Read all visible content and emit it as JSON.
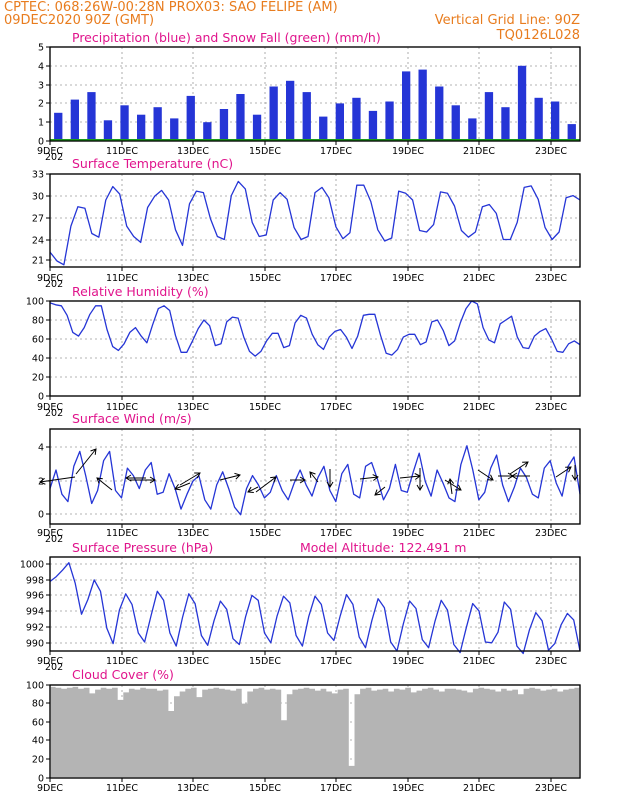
{
  "header": {
    "line1_left": "CPTEC:   068:26W-00:28N  PROX03: SAO FELIPE (AM)",
    "line2_left": "09DEC2020 90Z (GMT)",
    "line2_right": "Vertical Grid Line: 90Z",
    "line3_right": "TQ0126L028"
  },
  "colors": {
    "header": "#e87c1e",
    "title": "#e0148c",
    "line": "#2535d6",
    "snow": "#1a9a1a",
    "cloud": "#b4b4b4",
    "grid": "#9a9a9a"
  },
  "x_ticks": [
    "9DEC",
    "11DEC",
    "13DEC",
    "15DEC",
    "17DEC",
    "19DEC",
    "21DEC",
    "23DEC"
  ],
  "x_ticks_bottom": [
    "9DEC",
    "11DEC",
    "13DEC",
    "15DEC",
    "17DEC",
    "19DEC",
    "21DEC",
    "23DEC"
  ],
  "year_stub": "202",
  "panels": {
    "precip": {
      "title": "Precipitation (blue) and Snow Fall (green) (mm/h)",
      "yticks": [
        "0",
        "1",
        "2",
        "3",
        "4",
        "5"
      ]
    },
    "temp": {
      "title": "Surface Temperature (nC)",
      "yticks": [
        "21",
        "24",
        "27",
        "30",
        "33"
      ]
    },
    "rh": {
      "title": "Relative Humidity (%)",
      "yticks": [
        "0",
        "20",
        "40",
        "60",
        "80",
        "100"
      ]
    },
    "wind": {
      "title": "Surface Wind (m/s)",
      "yticks": [
        "0",
        "2",
        "4"
      ]
    },
    "pres": {
      "title": "Surface Pressure (hPa)",
      "subtitle": "Model Altitude: 122.491 m",
      "yticks": [
        "990",
        "992",
        "994",
        "996",
        "998",
        "1000"
      ]
    },
    "cloud": {
      "title": "Cloud Cover (%)",
      "yticks": [
        "0",
        "20",
        "40",
        "60",
        "80",
        "100"
      ]
    }
  },
  "chart_data": [
    {
      "type": "bar",
      "title": "Precipitation (blue) and Snow Fall (green) (mm/h)",
      "x_range": [
        "09DEC2020",
        "24DEC2020"
      ],
      "ylim": [
        0,
        5
      ],
      "series": [
        {
          "values": [
            1.5,
            2.2,
            2.6,
            1.1,
            1.9,
            1.4,
            1.8,
            1.2,
            2.4,
            1.0,
            1.7,
            2.5,
            1.4,
            2.9,
            3.2,
            2.6,
            1.3,
            2.0,
            2.3,
            1.6,
            2.1,
            3.7,
            3.8,
            2.9,
            1.9,
            1.2,
            2.6,
            1.8,
            4.0,
            2.3,
            2.1,
            0.9
          ]
        }
      ]
    },
    {
      "type": "line",
      "title": "Surface Temperature (nC)",
      "x_range": [
        "09DEC2020",
        "24DEC2020"
      ],
      "ylim": [
        20.5,
        33
      ],
      "series": [
        {
          "values": [
            22.5,
            21.3,
            20.8,
            26,
            28.6,
            28.4,
            25,
            24.5,
            29.5,
            31.3,
            30.3,
            26,
            24.6,
            23.8,
            28.5,
            30,
            30.8,
            29.5,
            25.5,
            23.4,
            29,
            30.7,
            30.5,
            27,
            24.6,
            24.2,
            30.1,
            32,
            31,
            26.5,
            24.6,
            24.8,
            29.5,
            30.5,
            29.6,
            25.8,
            24.2,
            24.6,
            30.5,
            31.2,
            29.8,
            25.9,
            24.3,
            25.1,
            31.5,
            31.5,
            29.3,
            25.5,
            24,
            24.4,
            30.7,
            30.4,
            29.5,
            25.4,
            25.2,
            26.2,
            30.6,
            30.4,
            28.7,
            25.4,
            24.5,
            25.2,
            28.6,
            28.9,
            27.7,
            24.2,
            24.2,
            26.5,
            31.2,
            31.4,
            29.6,
            25.8,
            24.2,
            25.2,
            29.8,
            30.1,
            29.5
          ]
        }
      ]
    },
    {
      "type": "line",
      "title": "Relative Humidity (%)",
      "x_range": [
        "09DEC2020",
        "24DEC2020"
      ],
      "ylim": [
        0,
        100
      ],
      "series": [
        {
          "values": [
            98,
            96,
            95,
            85,
            67,
            63,
            72,
            86,
            95,
            95,
            70,
            52,
            48,
            55,
            67,
            72,
            63,
            56,
            75,
            92,
            95,
            90,
            64,
            46,
            46,
            58,
            71,
            80,
            74,
            53,
            55,
            78,
            83,
            82,
            62,
            47,
            42,
            47,
            58,
            66,
            66,
            51,
            53,
            77,
            85,
            82,
            65,
            54,
            49,
            62,
            68,
            70,
            62,
            50,
            63,
            85,
            86,
            86,
            64,
            45,
            43,
            49,
            62,
            65,
            65,
            54,
            57,
            78,
            80,
            69,
            53,
            58,
            77,
            92,
            100,
            97,
            72,
            59,
            56,
            76,
            80,
            84,
            62,
            51,
            50,
            63,
            68,
            71,
            60,
            47,
            46,
            55,
            58,
            54
          ]
        }
      ]
    },
    {
      "type": "line",
      "title": "Surface Wind (m/s)",
      "x_range": [
        "09DEC2020",
        "24DEC2020"
      ],
      "ylim": [
        -0.3,
        4.8
      ],
      "series": [
        {
          "values": [
            1.6,
            2.6,
            1.3,
            0.9,
            2.8,
            3.6,
            2.3,
            0.8,
            1.5,
            3.1,
            3.6,
            1.5,
            1.1,
            2.7,
            2.3,
            1.6,
            2.6,
            3.0,
            1.3,
            1.4,
            2.4,
            1.6,
            0.5,
            1.3,
            2.0,
            2.3,
            1.0,
            0.5,
            1.8,
            2.5,
            1.6,
            0.6,
            0.2,
            1.6,
            2.3,
            1.8,
            1.1,
            1.4,
            2.3,
            1.5,
            1.0,
            1.9,
            2.6,
            1.8,
            1.2,
            2.2,
            2.8,
            1.5,
            0.9,
            2.4,
            2.9,
            1.3,
            1.1,
            2.8,
            3.0,
            2.1,
            1.0,
            1.6,
            2.9,
            1.5,
            1.4,
            2.5,
            3.5,
            2.0,
            1.2,
            2.6,
            1.9,
            1.1,
            0.9,
            2.9,
            3.9,
            2.6,
            1.0,
            1.4,
            2.7,
            3.4,
            1.8,
            0.9,
            1.7,
            2.7,
            2.2,
            1.3,
            1.1,
            2.7,
            3.1,
            1.9,
            1.2,
            2.8,
            3.3,
            1.3
          ]
        }
      ]
    },
    {
      "type": "line",
      "title": "Surface Pressure (hPa)",
      "x_range": [
        "09DEC2020",
        "24DEC2020"
      ],
      "ylim": [
        989.5,
        1001
      ],
      "series": [
        {
          "values": [
            998,
            998.6,
            999.4,
            1000.3,
            997.8,
            994,
            995.8,
            998.2,
            996.8,
            992.3,
            990.4,
            994.5,
            996.5,
            995.2,
            991.7,
            990.6,
            993.8,
            996.8,
            995.7,
            991.7,
            990.1,
            993.6,
            996.5,
            995.3,
            991.4,
            990.2,
            993.2,
            995.6,
            994.6,
            991,
            990.3,
            993.7,
            996.3,
            995.7,
            991.7,
            990.5,
            993.8,
            996.2,
            995.4,
            991.4,
            990.1,
            993.7,
            996.2,
            995.2,
            991.7,
            990.8,
            993.8,
            996.4,
            995.2,
            991.2,
            989.9,
            993.2,
            995.9,
            994.8,
            990.6,
            989.5,
            992.8,
            995.6,
            994.7,
            990.9,
            989.9,
            993.1,
            995.7,
            994.5,
            990.3,
            989.3,
            992.4,
            995.3,
            994.4,
            990.6,
            990.5,
            991.8,
            995.5,
            994.6,
            990.1,
            989.2,
            992.1,
            994.2,
            993.2,
            989.6,
            990.4,
            992.7,
            994.1,
            993.3,
            989.5
          ]
        }
      ]
    },
    {
      "type": "area",
      "title": "Cloud Cover (%)",
      "x_range": [
        "09DEC2020",
        "24DEC2020"
      ],
      "ylim": [
        0,
        100
      ],
      "series": [
        {
          "values": [
            98,
            97,
            96,
            97,
            98,
            96,
            97,
            91,
            95,
            97,
            96,
            97,
            84,
            92,
            96,
            95,
            97,
            96,
            96,
            94,
            95,
            72,
            88,
            93,
            96,
            97,
            87,
            95,
            96,
            97,
            96,
            95,
            94,
            96,
            80,
            93,
            96,
            97,
            95,
            96,
            95,
            62,
            90,
            95,
            96,
            97,
            96,
            94,
            96,
            93,
            91,
            95,
            96,
            13,
            90,
            96,
            97,
            94,
            95,
            96,
            93,
            96,
            95,
            97,
            92,
            94,
            96,
            97,
            95,
            93,
            96,
            96,
            95,
            94,
            92,
            96,
            97,
            96,
            95,
            93,
            96,
            94,
            95,
            90,
            96,
            97,
            96,
            94,
            95,
            96,
            93,
            95,
            96,
            97
          ]
        }
      ]
    }
  ]
}
